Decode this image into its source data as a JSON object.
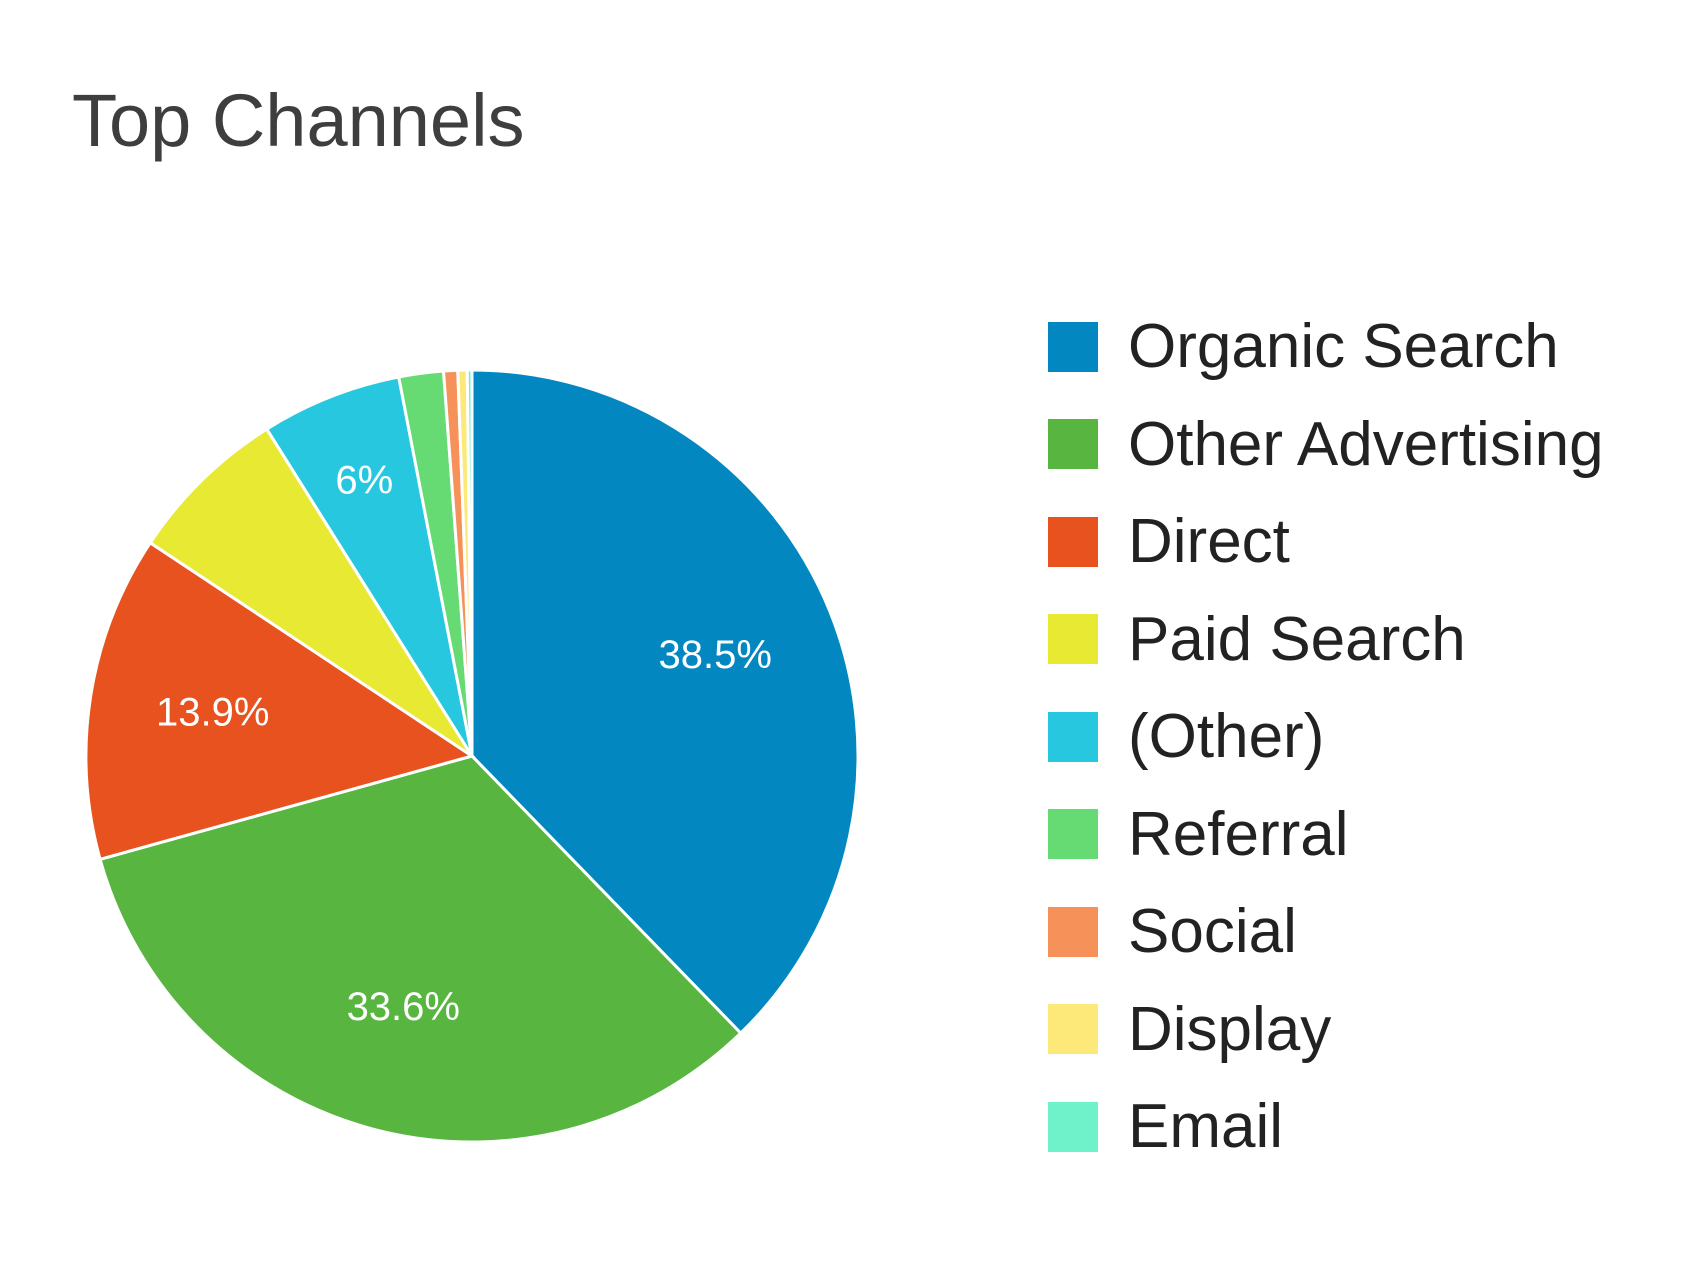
{
  "chart_data": {
    "type": "pie",
    "title": "Top Channels",
    "legend_position": "right",
    "series": [
      {
        "name": "Organic Search",
        "value": 38.5,
        "label": "38.5%",
        "color": "#0287c1"
      },
      {
        "name": "Other Advertising",
        "value": 33.6,
        "label": "33.6%",
        "color": "#57b540"
      },
      {
        "name": "Direct",
        "value": 13.9,
        "label": "13.9%",
        "color": "#e8521f"
      },
      {
        "name": "Paid Search",
        "value": 6.9,
        "label": "",
        "color": "#e8e933"
      },
      {
        "name": "(Other)",
        "value": 6.0,
        "label": "6%",
        "color": "#27c8df"
      },
      {
        "name": "Referral",
        "value": 1.9,
        "label": "",
        "color": "#66db74"
      },
      {
        "name": "Social",
        "value": 0.6,
        "label": "",
        "color": "#f69159"
      },
      {
        "name": "Display",
        "value": 0.4,
        "label": "",
        "color": "#fde97a"
      },
      {
        "name": "Email",
        "value": 0.2,
        "label": "",
        "color": "#6ff2c9"
      }
    ]
  }
}
